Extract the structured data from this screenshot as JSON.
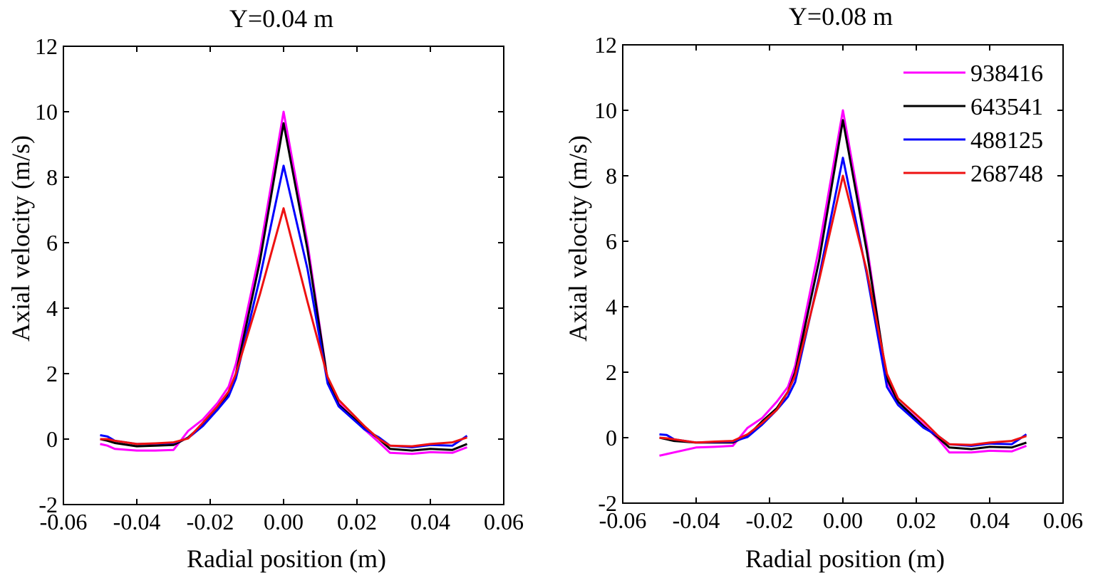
{
  "chart_data": [
    {
      "type": "line",
      "title": "Y=0.04 m",
      "xlabel": "Radial position (m)",
      "ylabel": "Axial velocity (m/s)",
      "xlim": [
        -0.06,
        0.06
      ],
      "ylim": [
        -2,
        12
      ],
      "xticks": [
        "-0.06",
        "-0.04",
        "-0.02",
        "0.00",
        "0.02",
        "0.04",
        "0.06"
      ],
      "yticks": [
        "-2",
        "0",
        "2",
        "4",
        "6",
        "8",
        "10",
        "12"
      ],
      "xtick_values": [
        -0.06,
        -0.04,
        -0.02,
        0.0,
        0.02,
        0.04,
        0.06
      ],
      "ytick_values": [
        -2,
        0,
        2,
        4,
        6,
        8,
        10,
        12
      ],
      "grid": false,
      "legend": null,
      "series": [
        {
          "name": "938416",
          "color": "#ff00ff",
          "x": [
            -0.05,
            -0.048,
            -0.046,
            -0.04,
            -0.035,
            -0.03,
            -0.026,
            -0.022,
            -0.018,
            -0.015,
            -0.013,
            -0.0065,
            0.0,
            0.0065,
            0.012,
            0.015,
            0.022,
            0.026,
            0.029,
            0.035,
            0.04,
            0.046,
            0.05
          ],
          "y": [
            -0.15,
            -0.2,
            -0.3,
            -0.35,
            -0.35,
            -0.33,
            0.25,
            0.6,
            1.1,
            1.6,
            2.3,
            5.7,
            10.0,
            6.0,
            1.8,
            1.1,
            0.3,
            -0.1,
            -0.42,
            -0.45,
            -0.4,
            -0.42,
            -0.25
          ]
        },
        {
          "name": "643541",
          "color": "#000000",
          "x": [
            -0.05,
            -0.048,
            -0.046,
            -0.04,
            -0.035,
            -0.03,
            -0.026,
            -0.022,
            -0.018,
            -0.015,
            -0.013,
            -0.0065,
            0.0,
            0.0065,
            0.012,
            0.015,
            0.022,
            0.026,
            0.029,
            0.035,
            0.04,
            0.046,
            0.05
          ],
          "y": [
            0.0,
            -0.05,
            -0.12,
            -0.22,
            -0.2,
            -0.18,
            0.05,
            0.45,
            0.9,
            1.4,
            2.0,
            5.4,
            9.65,
            5.8,
            1.8,
            1.05,
            0.35,
            0.0,
            -0.3,
            -0.35,
            -0.3,
            -0.33,
            -0.15
          ]
        },
        {
          "name": "488125",
          "color": "#0000ff",
          "x": [
            -0.05,
            -0.048,
            -0.046,
            -0.04,
            -0.035,
            -0.03,
            -0.026,
            -0.022,
            -0.018,
            -0.015,
            -0.013,
            -0.0065,
            0.0,
            0.0065,
            0.012,
            0.015,
            0.022,
            0.026,
            0.029,
            0.035,
            0.04,
            0.046,
            0.05
          ],
          "y": [
            0.12,
            0.08,
            -0.05,
            -0.15,
            -0.14,
            -0.12,
            0.03,
            0.4,
            0.9,
            1.3,
            1.85,
            4.9,
            8.35,
            5.2,
            1.7,
            1.0,
            0.3,
            0.05,
            -0.2,
            -0.25,
            -0.18,
            -0.2,
            0.1
          ]
        },
        {
          "name": "268748",
          "color": "#ee1111",
          "x": [
            -0.05,
            -0.048,
            -0.046,
            -0.04,
            -0.035,
            -0.03,
            -0.026,
            -0.022,
            -0.018,
            -0.015,
            -0.013,
            -0.0065,
            0.0,
            0.0065,
            0.012,
            0.015,
            0.022,
            0.026,
            0.029,
            0.035,
            0.04,
            0.046,
            0.05
          ],
          "y": [
            0.0,
            0.0,
            -0.05,
            -0.15,
            -0.13,
            -0.1,
            0.02,
            0.5,
            1.0,
            1.45,
            2.0,
            4.4,
            7.05,
            4.2,
            1.9,
            1.2,
            0.4,
            0.0,
            -0.2,
            -0.22,
            -0.15,
            -0.1,
            0.05
          ]
        }
      ]
    },
    {
      "type": "line",
      "title": "Y=0.08 m",
      "xlabel": "Radial position (m)",
      "ylabel": "Axial velocity (m/s)",
      "xlim": [
        -0.06,
        0.06
      ],
      "ylim": [
        -2,
        12
      ],
      "xticks": [
        "-0.06",
        "-0.04",
        "-0.02",
        "0.00",
        "0.02",
        "0.04",
        "0.06"
      ],
      "yticks": [
        "-2",
        "0",
        "2",
        "4",
        "6",
        "8",
        "10",
        "12"
      ],
      "xtick_values": [
        -0.06,
        -0.04,
        -0.02,
        0.0,
        0.02,
        0.04,
        0.06
      ],
      "ytick_values": [
        -2,
        0,
        2,
        4,
        6,
        8,
        10,
        12
      ],
      "grid": false,
      "legend": "top-right",
      "series": [
        {
          "name": "938416",
          "color": "#ff00ff",
          "x": [
            -0.05,
            -0.048,
            -0.046,
            -0.04,
            -0.035,
            -0.03,
            -0.026,
            -0.022,
            -0.018,
            -0.015,
            -0.013,
            -0.0065,
            0.0,
            0.0065,
            0.012,
            0.015,
            0.022,
            0.026,
            0.029,
            0.035,
            0.04,
            0.046,
            0.05
          ],
          "y": [
            -0.55,
            -0.5,
            -0.45,
            -0.3,
            -0.28,
            -0.25,
            0.3,
            0.6,
            1.1,
            1.55,
            2.2,
            5.8,
            10.0,
            5.9,
            1.7,
            1.1,
            0.4,
            -0.05,
            -0.45,
            -0.45,
            -0.4,
            -0.42,
            -0.25
          ]
        },
        {
          "name": "643541",
          "color": "#000000",
          "x": [
            -0.05,
            -0.048,
            -0.046,
            -0.04,
            -0.035,
            -0.03,
            -0.026,
            -0.022,
            -0.018,
            -0.015,
            -0.013,
            -0.0065,
            0.0,
            0.0065,
            0.012,
            0.015,
            0.022,
            0.026,
            0.029,
            0.035,
            0.04,
            0.046,
            0.05
          ],
          "y": [
            0.0,
            -0.05,
            -0.1,
            -0.15,
            -0.15,
            -0.15,
            0.05,
            0.5,
            0.9,
            1.4,
            2.0,
            5.4,
            9.7,
            5.7,
            1.8,
            1.1,
            0.35,
            0.0,
            -0.3,
            -0.35,
            -0.28,
            -0.3,
            -0.15
          ]
        },
        {
          "name": "488125",
          "color": "#0000ff",
          "x": [
            -0.05,
            -0.048,
            -0.046,
            -0.04,
            -0.035,
            -0.03,
            -0.026,
            -0.022,
            -0.018,
            -0.015,
            -0.013,
            -0.0065,
            0.0,
            0.0065,
            0.012,
            0.015,
            0.022,
            0.026,
            0.029,
            0.035,
            0.04,
            0.046,
            0.05
          ],
          "y": [
            0.1,
            0.08,
            -0.05,
            -0.15,
            -0.13,
            -0.12,
            0.02,
            0.4,
            0.85,
            1.25,
            1.7,
            4.9,
            8.55,
            5.0,
            1.55,
            1.0,
            0.3,
            0.05,
            -0.2,
            -0.25,
            -0.18,
            -0.2,
            0.1
          ]
        },
        {
          "name": "268748",
          "color": "#ee1111",
          "x": [
            -0.05,
            -0.048,
            -0.046,
            -0.04,
            -0.035,
            -0.03,
            -0.026,
            -0.022,
            -0.018,
            -0.015,
            -0.013,
            -0.0065,
            0.0,
            0.0065,
            0.012,
            0.015,
            0.022,
            0.026,
            0.029,
            0.035,
            0.04,
            0.046,
            0.05
          ],
          "y": [
            0.0,
            -0.02,
            -0.05,
            -0.15,
            -0.12,
            -0.1,
            0.1,
            0.45,
            0.85,
            1.4,
            1.9,
            4.8,
            8.0,
            5.1,
            1.95,
            1.2,
            0.5,
            0.05,
            -0.2,
            -0.22,
            -0.15,
            -0.1,
            0.05
          ]
        }
      ]
    }
  ]
}
